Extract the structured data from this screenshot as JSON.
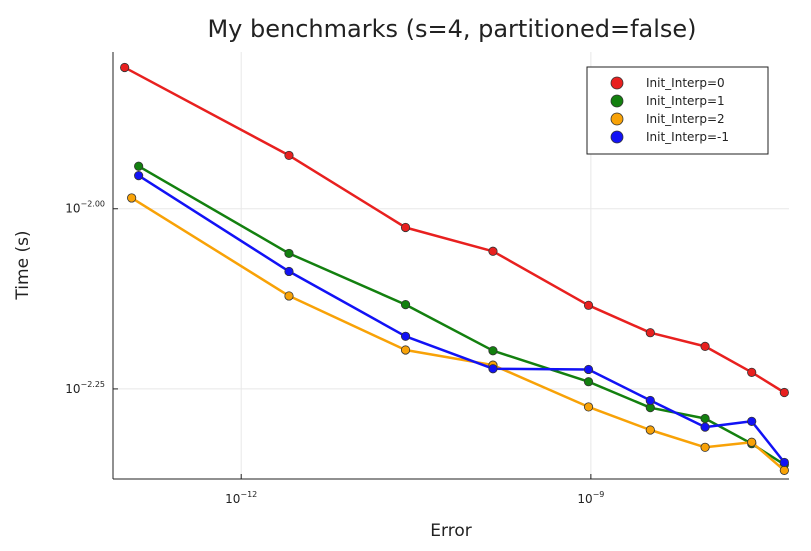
{
  "chart_data": {
    "type": "line",
    "title": "My benchmarks (s=4, partitioned=false)",
    "xlabel": "Error",
    "ylabel": "Time (s)",
    "xscale": "log10",
    "yscale": "log10",
    "xlim_log10": [
      -13.1,
      -7.3
    ],
    "ylim_log10": [
      -2.375,
      -1.7825
    ],
    "x_ticks": [
      {
        "base": "10",
        "exp": "−12",
        "log10": -12
      },
      {
        "base": "10",
        "exp": "−9",
        "log10": -9
      }
    ],
    "y_ticks": [
      {
        "base": "10",
        "exp": "−2.00",
        "log10": -2.0
      },
      {
        "base": "10",
        "exp": "−2.25",
        "log10": -2.25
      }
    ],
    "grid": true,
    "legend_position": "top-right",
    "series": [
      {
        "name": "Init_Interp=0",
        "color": "#e8201f",
        "points": [
          [
            -13.0,
            -1.804
          ],
          [
            -11.59,
            -1.926
          ],
          [
            -10.59,
            -2.026
          ],
          [
            -9.84,
            -2.059
          ],
          [
            -9.02,
            -2.134
          ],
          [
            -8.49,
            -2.172
          ],
          [
            -8.02,
            -2.191
          ],
          [
            -7.62,
            -2.227
          ],
          [
            -7.34,
            -2.255
          ]
        ]
      },
      {
        "name": "Init_Interp=1",
        "color": "#13800f",
        "points": [
          [
            -12.88,
            -1.941
          ],
          [
            -11.59,
            -2.062
          ],
          [
            -10.59,
            -2.133
          ],
          [
            -9.84,
            -2.197
          ],
          [
            -9.02,
            -2.24
          ],
          [
            -8.49,
            -2.276
          ],
          [
            -8.02,
            -2.291
          ],
          [
            -7.62,
            -2.326
          ],
          [
            -7.34,
            -2.355
          ]
        ]
      },
      {
        "name": "Init_Interp=2",
        "color": "#f8a207",
        "points": [
          [
            -12.94,
            -1.985
          ],
          [
            -11.59,
            -2.121
          ],
          [
            -10.59,
            -2.196
          ],
          [
            -9.84,
            -2.217
          ],
          [
            -9.02,
            -2.275
          ],
          [
            -8.49,
            -2.307
          ],
          [
            -8.02,
            -2.331
          ],
          [
            -7.62,
            -2.324
          ],
          [
            -7.34,
            -2.363
          ]
        ]
      },
      {
        "name": "Init_Interp=-1",
        "color": "#1212f5",
        "points": [
          [
            -12.88,
            -1.954
          ],
          [
            -11.59,
            -2.087
          ],
          [
            -10.59,
            -2.177
          ],
          [
            -9.84,
            -2.222
          ],
          [
            -9.02,
            -2.223
          ],
          [
            -8.49,
            -2.266
          ],
          [
            -8.02,
            -2.303
          ],
          [
            -7.62,
            -2.295
          ],
          [
            -7.34,
            -2.352
          ]
        ]
      }
    ]
  }
}
